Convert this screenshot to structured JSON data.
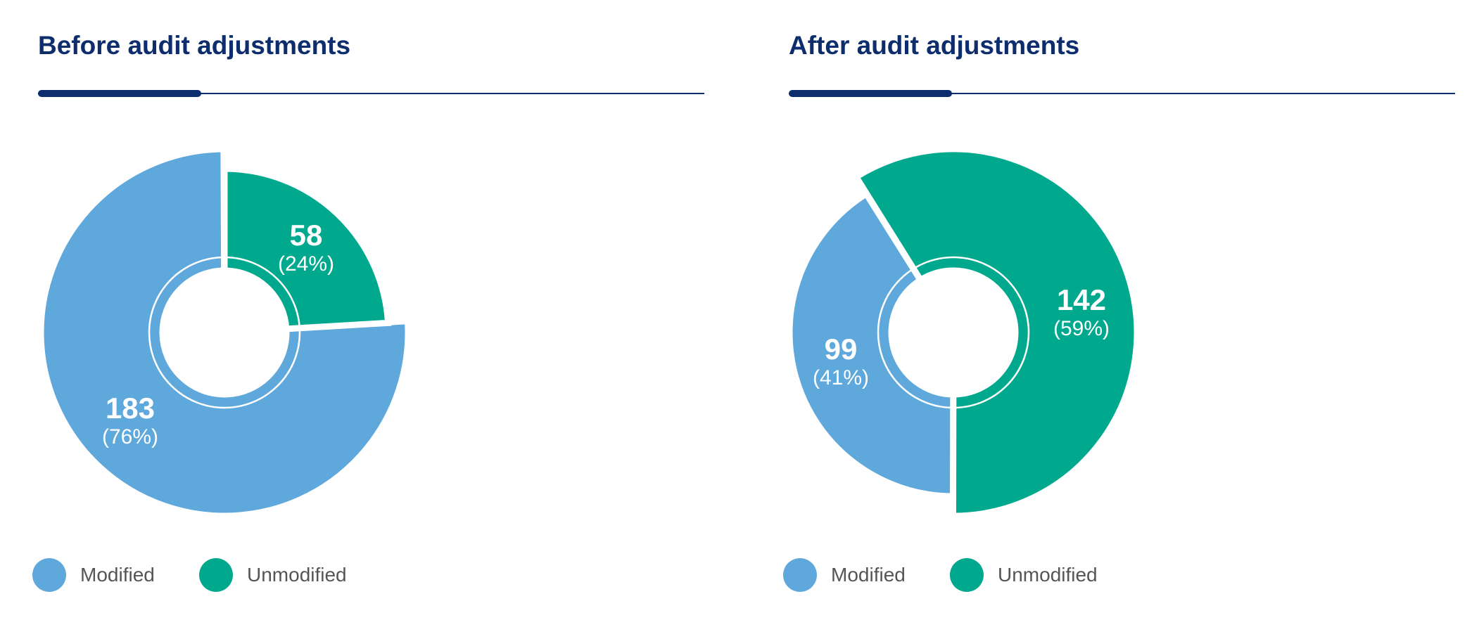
{
  "colors": {
    "modified": "#5fa8dc",
    "unmodified": "#00a88e",
    "title": "#0d2d6c"
  },
  "chart_data": [
    {
      "type": "pie",
      "variant": "donut",
      "title": "Before audit adjustments",
      "categories": [
        "Modified",
        "Unmodified"
      ],
      "values": [
        183,
        58
      ],
      "percent_labels": [
        "(76%)",
        "(24%)"
      ],
      "legend": [
        "Modified",
        "Unmodified"
      ],
      "legend_placement": "bottom-left"
    },
    {
      "type": "pie",
      "variant": "donut",
      "title": "After audit adjustments",
      "categories": [
        "Modified",
        "Unmodified"
      ],
      "values": [
        99,
        142
      ],
      "percent_labels": [
        "(41%)",
        "(59%)"
      ],
      "legend": [
        "Modified",
        "Unmodified"
      ],
      "legend_placement": "bottom-left"
    }
  ]
}
